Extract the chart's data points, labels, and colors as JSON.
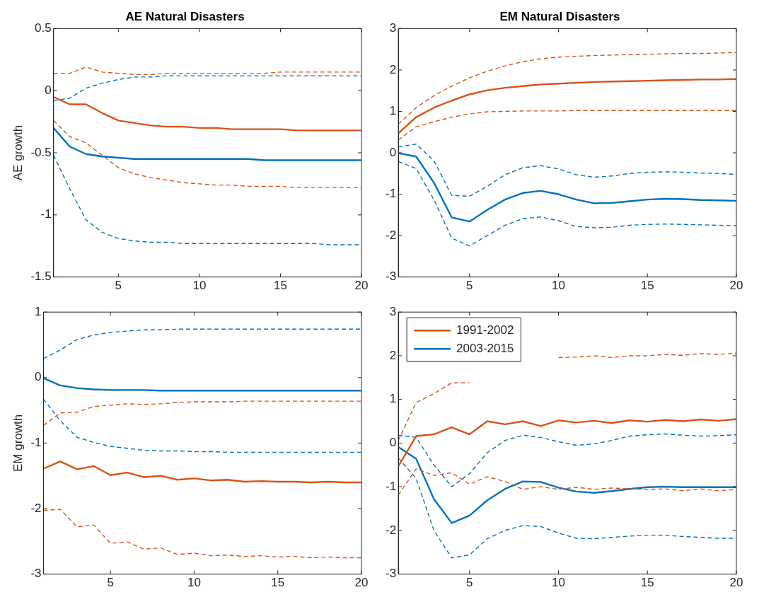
{
  "chart_data": [
    {
      "type": "line",
      "title": "AE Natural Disasters",
      "ylabel": "AE growth",
      "x": [
        1,
        2,
        3,
        4,
        5,
        6,
        7,
        8,
        9,
        10,
        11,
        12,
        13,
        14,
        15,
        16,
        17,
        18,
        19,
        20
      ],
      "xlim": [
        1,
        20
      ],
      "xticks": [
        5,
        10,
        15,
        20
      ],
      "ylim": [
        -1.5,
        0.5
      ],
      "yticks": [
        -1.5,
        -1,
        -0.5,
        0,
        0.5
      ],
      "grid": false,
      "legend": false,
      "marker": "none",
      "series": [
        {
          "color": "#d95319",
          "line_style": "solid",
          "values": [
            -0.05,
            -0.11,
            -0.11,
            -0.18,
            -0.24,
            -0.26,
            -0.28,
            -0.29,
            -0.29,
            -0.3,
            -0.3,
            -0.31,
            -0.31,
            -0.31,
            -0.31,
            -0.32,
            -0.32,
            -0.32,
            -0.32,
            -0.32
          ]
        },
        {
          "color": "#d95319",
          "line_style": "dashed",
          "values": [
            -0.24,
            -0.37,
            -0.42,
            -0.52,
            -0.62,
            -0.67,
            -0.7,
            -0.72,
            -0.74,
            -0.75,
            -0.76,
            -0.76,
            -0.77,
            -0.77,
            -0.77,
            -0.78,
            -0.78,
            -0.78,
            -0.78,
            -0.78
          ]
        },
        {
          "color": "#d95319",
          "line_style": "dashed",
          "values": [
            0.14,
            0.14,
            0.19,
            0.15,
            0.14,
            0.13,
            0.13,
            0.14,
            0.14,
            0.14,
            0.14,
            0.14,
            0.14,
            0.14,
            0.15,
            0.15,
            0.15,
            0.15,
            0.15,
            0.15
          ]
        },
        {
          "color": "#0072bd",
          "line_style": "solid",
          "values": [
            -0.3,
            -0.45,
            -0.51,
            -0.53,
            -0.54,
            -0.55,
            -0.55,
            -0.55,
            -0.55,
            -0.55,
            -0.55,
            -0.55,
            -0.55,
            -0.56,
            -0.56,
            -0.56,
            -0.56,
            -0.56,
            -0.56,
            -0.56
          ]
        },
        {
          "color": "#0072bd",
          "line_style": "dashed",
          "values": [
            -0.52,
            -0.79,
            -1.04,
            -1.14,
            -1.19,
            -1.21,
            -1.22,
            -1.22,
            -1.23,
            -1.23,
            -1.23,
            -1.23,
            -1.23,
            -1.23,
            -1.23,
            -1.23,
            -1.23,
            -1.24,
            -1.24,
            -1.24
          ]
        },
        {
          "color": "#0072bd",
          "line_style": "dashed",
          "values": [
            -0.08,
            -0.06,
            0.02,
            0.06,
            0.09,
            0.11,
            0.11,
            0.12,
            0.12,
            0.12,
            0.12,
            0.12,
            0.12,
            0.12,
            0.12,
            0.12,
            0.12,
            0.12,
            0.12,
            0.12
          ]
        }
      ]
    },
    {
      "type": "line",
      "title": "EM Natural Disasters",
      "x": [
        1,
        2,
        3,
        4,
        5,
        6,
        7,
        8,
        9,
        10,
        11,
        12,
        13,
        14,
        15,
        16,
        17,
        18,
        19,
        20
      ],
      "xlim": [
        1,
        20
      ],
      "xticks": [
        5,
        10,
        15,
        20
      ],
      "ylim": [
        -3,
        3
      ],
      "yticks": [
        -3,
        -2,
        -1,
        0,
        1,
        2,
        3
      ],
      "grid": false,
      "legend": false,
      "marker": "none",
      "series": [
        {
          "color": "#d95319",
          "line_style": "solid",
          "values": [
            0.47,
            0.86,
            1.09,
            1.26,
            1.41,
            1.51,
            1.57,
            1.61,
            1.65,
            1.67,
            1.69,
            1.71,
            1.72,
            1.73,
            1.74,
            1.75,
            1.76,
            1.77,
            1.77,
            1.78
          ]
        },
        {
          "color": "#d95319",
          "line_style": "dashed",
          "values": [
            0.31,
            0.63,
            0.75,
            0.86,
            0.94,
            0.99,
            1.0,
            1.01,
            1.01,
            1.01,
            1.02,
            1.02,
            1.02,
            1.02,
            1.02,
            1.02,
            1.02,
            1.02,
            1.02,
            1.02
          ]
        },
        {
          "color": "#d95319",
          "line_style": "dashed",
          "values": [
            0.69,
            1.09,
            1.38,
            1.61,
            1.81,
            1.97,
            2.1,
            2.2,
            2.27,
            2.31,
            2.33,
            2.35,
            2.36,
            2.37,
            2.38,
            2.39,
            2.4,
            2.4,
            2.41,
            2.42
          ]
        },
        {
          "color": "#0072bd",
          "line_style": "solid",
          "values": [
            -0.01,
            -0.09,
            -0.72,
            -1.56,
            -1.66,
            -1.38,
            -1.13,
            -0.97,
            -0.92,
            -1.0,
            -1.13,
            -1.22,
            -1.21,
            -1.17,
            -1.13,
            -1.11,
            -1.12,
            -1.14,
            -1.15,
            -1.16
          ]
        },
        {
          "color": "#0072bd",
          "line_style": "dashed",
          "values": [
            -0.21,
            -0.38,
            -1.13,
            -2.06,
            -2.25,
            -2.0,
            -1.75,
            -1.59,
            -1.55,
            -1.64,
            -1.78,
            -1.81,
            -1.8,
            -1.75,
            -1.73,
            -1.72,
            -1.73,
            -1.74,
            -1.75,
            -1.76
          ]
        },
        {
          "color": "#0072bd",
          "line_style": "dashed",
          "values": [
            0.14,
            0.21,
            -0.19,
            -1.03,
            -1.05,
            -0.81,
            -0.53,
            -0.36,
            -0.31,
            -0.39,
            -0.53,
            -0.59,
            -0.56,
            -0.5,
            -0.47,
            -0.46,
            -0.47,
            -0.49,
            -0.5,
            -0.52
          ]
        }
      ]
    },
    {
      "type": "line",
      "ylabel": "EM growth",
      "x": [
        1,
        2,
        3,
        4,
        5,
        6,
        7,
        8,
        9,
        10,
        11,
        12,
        13,
        14,
        15,
        16,
        17,
        18,
        19,
        20
      ],
      "xlim": [
        1,
        20
      ],
      "xticks": [
        5,
        10,
        15,
        20
      ],
      "ylim": [
        -3,
        1
      ],
      "yticks": [
        -3,
        -2,
        -1,
        0,
        1
      ],
      "grid": false,
      "legend": false,
      "marker": "none",
      "series": [
        {
          "color": "#d95319",
          "line_style": "solid",
          "values": [
            -1.39,
            -1.28,
            -1.4,
            -1.35,
            -1.49,
            -1.45,
            -1.52,
            -1.5,
            -1.56,
            -1.54,
            -1.57,
            -1.56,
            -1.59,
            -1.58,
            -1.59,
            -1.59,
            -1.6,
            -1.59,
            -1.6,
            -1.6
          ]
        },
        {
          "color": "#d95319",
          "line_style": "dashed",
          "values": [
            -2.03,
            -2.01,
            -2.28,
            -2.25,
            -2.53,
            -2.51,
            -2.62,
            -2.6,
            -2.7,
            -2.68,
            -2.72,
            -2.71,
            -2.73,
            -2.72,
            -2.74,
            -2.73,
            -2.75,
            -2.74,
            -2.75,
            -2.75
          ]
        },
        {
          "color": "#d95319",
          "line_style": "dashed",
          "values": [
            -0.73,
            -0.54,
            -0.53,
            -0.44,
            -0.42,
            -0.4,
            -0.41,
            -0.4,
            -0.38,
            -0.37,
            -0.37,
            -0.37,
            -0.36,
            -0.36,
            -0.36,
            -0.36,
            -0.36,
            -0.36,
            -0.36,
            -0.36
          ]
        },
        {
          "color": "#0072bd",
          "line_style": "solid",
          "values": [
            -0.01,
            -0.12,
            -0.16,
            -0.18,
            -0.19,
            -0.19,
            -0.19,
            -0.2,
            -0.2,
            -0.2,
            -0.2,
            -0.2,
            -0.2,
            -0.2,
            -0.2,
            -0.2,
            -0.2,
            -0.2,
            -0.2,
            -0.2
          ]
        },
        {
          "color": "#0072bd",
          "line_style": "dashed",
          "values": [
            -0.33,
            -0.66,
            -0.91,
            -0.99,
            -1.05,
            -1.08,
            -1.11,
            -1.12,
            -1.12,
            -1.13,
            -1.13,
            -1.14,
            -1.14,
            -1.14,
            -1.14,
            -1.14,
            -1.14,
            -1.14,
            -1.14,
            -1.14
          ]
        },
        {
          "color": "#0072bd",
          "line_style": "dashed",
          "values": [
            0.29,
            0.42,
            0.58,
            0.65,
            0.69,
            0.71,
            0.73,
            0.73,
            0.74,
            0.74,
            0.74,
            0.74,
            0.74,
            0.74,
            0.74,
            0.74,
            0.74,
            0.74,
            0.74,
            0.74
          ]
        }
      ]
    },
    {
      "type": "line",
      "x": [
        1,
        2,
        3,
        4,
        5,
        6,
        7,
        8,
        9,
        10,
        11,
        12,
        13,
        14,
        15,
        16,
        17,
        18,
        19,
        20
      ],
      "xlim": [
        1,
        20
      ],
      "xticks": [
        5,
        10,
        15,
        20
      ],
      "ylim": [
        -3,
        3
      ],
      "yticks": [
        -3,
        -2,
        -1,
        0,
        1,
        2,
        3
      ],
      "grid": false,
      "legend": "top left",
      "marker": "none",
      "series": [
        {
          "name": "1991-2002",
          "color": "#d95319",
          "line_style": "solid",
          "values": [
            -0.53,
            0.16,
            0.2,
            0.36,
            0.2,
            0.5,
            0.43,
            0.5,
            0.39,
            0.52,
            0.47,
            0.51,
            0.46,
            0.52,
            0.49,
            0.53,
            0.5,
            0.54,
            0.51,
            0.55
          ]
        },
        {
          "color": "#d95319",
          "line_style": "dashed",
          "values": [
            -1.19,
            -0.59,
            -0.74,
            -0.68,
            -0.94,
            -0.77,
            -0.88,
            -1.06,
            -1.0,
            -1.06,
            -1.01,
            -1.06,
            -1.03,
            -1.05,
            -1.06,
            -1.05,
            -1.09,
            -1.05,
            -1.09,
            -1.06
          ]
        },
        {
          "color": "#d95319",
          "line_style": "dashed",
          "values": [
            0.06,
            0.93,
            1.13,
            1.38,
            1.38,
            null,
            null,
            null,
            null,
            1.96,
            1.97,
            2.0,
            1.96,
            2.0,
            2.0,
            2.03,
            2.01,
            2.05,
            2.03,
            2.06
          ]
        },
        {
          "name": "2003-2015",
          "color": "#0072bd",
          "line_style": "solid",
          "values": [
            -0.09,
            -0.36,
            -1.28,
            -1.83,
            -1.66,
            -1.31,
            -1.05,
            -0.88,
            -0.89,
            -1.02,
            -1.11,
            -1.14,
            -1.1,
            -1.05,
            -1.01,
            -1.0,
            -1.01,
            -1.01,
            -1.01,
            -1.01
          ]
        },
        {
          "color": "#0072bd",
          "line_style": "dashed",
          "values": [
            -0.34,
            -0.81,
            -2.0,
            -2.63,
            -2.56,
            -2.19,
            -2.0,
            -1.89,
            -1.91,
            -2.06,
            -2.18,
            -2.19,
            -2.16,
            -2.13,
            -2.11,
            -2.11,
            -2.14,
            -2.16,
            -2.18,
            -2.18
          ]
        },
        {
          "color": "#0072bd",
          "line_style": "dashed",
          "values": [
            0.18,
            0.13,
            -0.5,
            -1.0,
            -0.7,
            -0.22,
            0.06,
            0.18,
            0.13,
            0.03,
            -0.05,
            -0.02,
            0.06,
            0.16,
            0.19,
            0.21,
            0.18,
            0.16,
            0.17,
            0.19
          ]
        }
      ]
    }
  ]
}
